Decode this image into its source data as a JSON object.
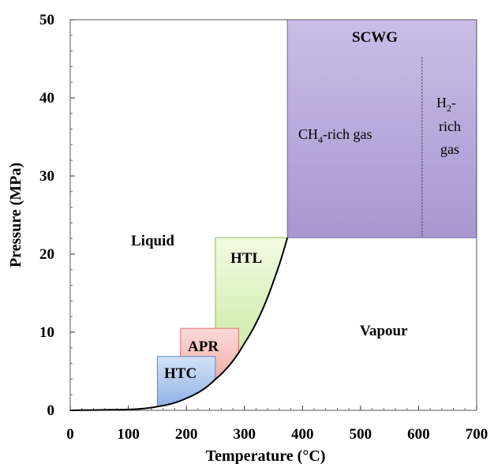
{
  "chart_data": {
    "type": "area",
    "xlabel": "Temperature (°C)",
    "ylabel": "Pressure (MPa)",
    "xlim": [
      0,
      700
    ],
    "ylim": [
      0,
      50
    ],
    "x_ticks": [
      "0",
      "100",
      "200",
      "300",
      "400",
      "500",
      "600",
      "700"
    ],
    "y_ticks": [
      "0",
      "10",
      "20",
      "30",
      "40",
      "50"
    ],
    "grid": false,
    "saturation_curve": {
      "x": [
        0,
        100,
        150,
        200,
        250,
        300,
        350,
        374
      ],
      "y": [
        0.0,
        0.1,
        0.48,
        1.55,
        3.98,
        8.58,
        16.5,
        22.1
      ]
    },
    "regions": [
      {
        "label": "SCWG",
        "x": [
          374,
          700
        ],
        "y": [
          22.1,
          50
        ],
        "color": "#b7a6d8"
      },
      {
        "label": "HTL",
        "x": [
          250,
          374
        ],
        "y": [
          0,
          22.1
        ],
        "color": "#d6f0b0"
      },
      {
        "label": "APR",
        "x": [
          190,
          290
        ],
        "y": [
          0,
          10.5
        ],
        "color": "#f4b8b4"
      },
      {
        "label": "HTC",
        "x": [
          150,
          250
        ],
        "y": [
          0,
          6.9
        ],
        "color": "#a9c4ec"
      }
    ],
    "divider_x": 606,
    "annotations": {
      "liquid": "Liquid",
      "vapour": "Vapour",
      "htl": "HTL",
      "apr": "APR",
      "htc": "HTC",
      "scwg": "SCWG",
      "ch4_prefix": "CH",
      "ch4_sub": "4",
      "ch4_suffix": "-rich gas",
      "h2_prefix": "H",
      "h2_sub": "2",
      "h2_suffix": "-",
      "h2_line2": "rich",
      "h2_line3": "gas"
    }
  }
}
